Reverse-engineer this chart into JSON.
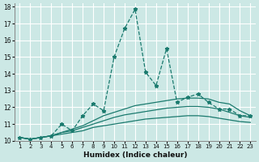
{
  "xlabel": "Humidex (Indice chaleur)",
  "xlim": [
    0.5,
    23.5
  ],
  "ylim": [
    10,
    18.2
  ],
  "xticks": [
    1,
    2,
    3,
    4,
    5,
    6,
    7,
    8,
    9,
    10,
    11,
    12,
    13,
    14,
    15,
    16,
    17,
    18,
    19,
    20,
    21,
    22,
    23
  ],
  "yticks": [
    10,
    11,
    12,
    13,
    14,
    15,
    16,
    17,
    18
  ],
  "bg_color": "#cce8e5",
  "grid_color": "#ffffff",
  "line_color": "#1a7a6e",
  "line1_x": [
    1,
    2,
    3,
    4,
    5,
    6,
    7,
    8,
    9,
    10,
    11,
    12,
    13,
    14,
    15,
    16,
    17,
    18,
    19,
    20,
    21,
    22,
    23
  ],
  "line1_y": [
    10.2,
    10.1,
    10.2,
    10.3,
    11.0,
    10.6,
    11.5,
    12.2,
    11.8,
    15.0,
    16.7,
    17.85,
    14.1,
    13.3,
    15.5,
    12.3,
    12.6,
    12.8,
    12.3,
    11.9,
    11.9,
    11.5,
    11.5
  ],
  "line2_x": [
    1,
    2,
    3,
    4,
    5,
    6,
    7,
    8,
    9,
    10,
    11,
    12,
    13,
    14,
    15,
    16,
    17,
    18,
    19,
    20,
    21,
    22,
    23
  ],
  "line2_y": [
    10.2,
    10.1,
    10.2,
    10.3,
    10.5,
    10.7,
    10.9,
    11.2,
    11.5,
    11.7,
    11.9,
    12.1,
    12.2,
    12.3,
    12.4,
    12.5,
    12.55,
    12.55,
    12.5,
    12.3,
    12.2,
    11.8,
    11.5
  ],
  "line3_x": [
    1,
    2,
    3,
    4,
    5,
    6,
    7,
    8,
    9,
    10,
    11,
    12,
    13,
    14,
    15,
    16,
    17,
    18,
    19,
    20,
    21,
    22,
    23
  ],
  "line3_y": [
    10.2,
    10.1,
    10.2,
    10.3,
    10.5,
    10.6,
    10.8,
    11.0,
    11.2,
    11.4,
    11.55,
    11.65,
    11.75,
    11.85,
    11.95,
    12.0,
    12.05,
    12.05,
    12.0,
    11.9,
    11.7,
    11.5,
    11.4
  ],
  "line4_x": [
    1,
    2,
    3,
    4,
    5,
    6,
    7,
    8,
    9,
    10,
    11,
    12,
    13,
    14,
    15,
    16,
    17,
    18,
    19,
    20,
    21,
    22,
    23
  ],
  "line4_y": [
    10.2,
    10.1,
    10.2,
    10.3,
    10.4,
    10.5,
    10.6,
    10.8,
    10.9,
    11.0,
    11.1,
    11.2,
    11.3,
    11.35,
    11.4,
    11.45,
    11.5,
    11.5,
    11.45,
    11.35,
    11.25,
    11.15,
    11.1
  ]
}
